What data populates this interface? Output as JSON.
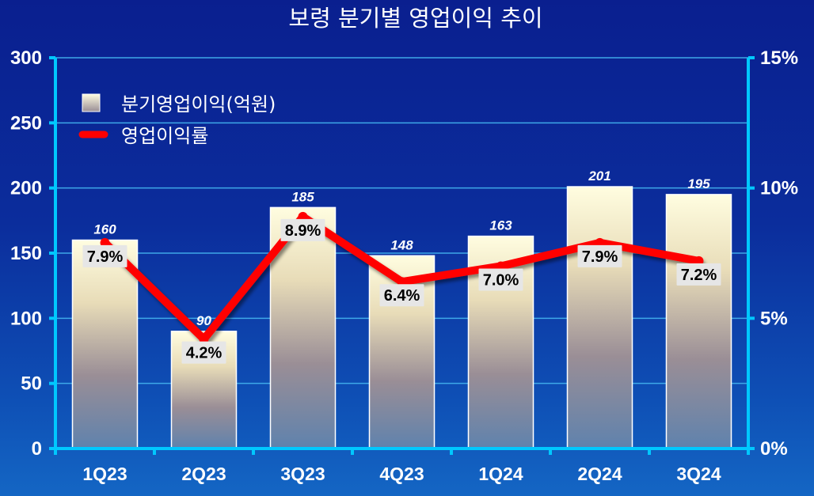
{
  "chart_data": {
    "type": "bar",
    "title": "보령 분기별 영업이익 추이",
    "categories": [
      "1Q23",
      "2Q23",
      "3Q23",
      "4Q23",
      "1Q24",
      "2Q24",
      "3Q24"
    ],
    "series": [
      {
        "name": "분기영업이익(억원)",
        "type": "bar",
        "axis": "left",
        "values": [
          160,
          90,
          185,
          148,
          163,
          201,
          195
        ],
        "labels": [
          "160",
          "90",
          "185",
          "148",
          "163",
          "201",
          "195"
        ]
      },
      {
        "name": "영업이익률",
        "type": "line",
        "axis": "right",
        "values": [
          7.9,
          4.2,
          8.9,
          6.4,
          7.0,
          7.9,
          7.2
        ],
        "labels": [
          "7.9%",
          "4.2%",
          "8.9%",
          "6.4%",
          "7.0%",
          "7.9%",
          "7.2%"
        ]
      }
    ],
    "y_left": {
      "ylim": [
        0,
        300
      ],
      "ticks": [
        "0",
        "50",
        "100",
        "150",
        "200",
        "250",
        "300"
      ]
    },
    "y_right": {
      "ylim": [
        0,
        15
      ],
      "ticks": [
        "0%",
        "5%",
        "10%",
        "15%"
      ]
    },
    "grid": true,
    "legend_position": "top-left",
    "colors": {
      "line": "#ff0000",
      "axis": "#00c8ff",
      "bar_top": "#fffdd8",
      "bar_bottom": "#5a7ea8",
      "label_box": "#e6e6e6"
    }
  }
}
